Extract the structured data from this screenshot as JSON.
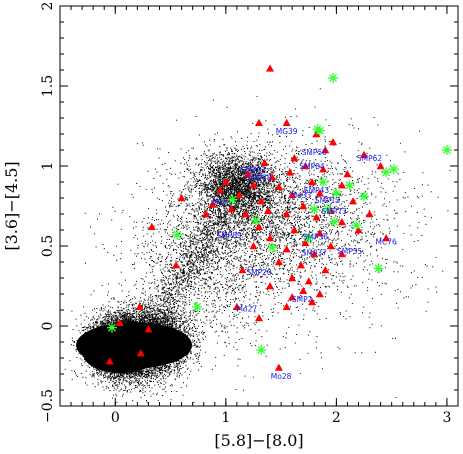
{
  "chart_data": {
    "type": "scatter",
    "xlabel": "[5.8]−[8.0]",
    "ylabel": "[3.6]−[4.5]",
    "xlim": [
      -0.5,
      3.1
    ],
    "ylim": [
      -0.5,
      2.0
    ],
    "x_ticks": [
      0,
      1,
      2,
      3
    ],
    "x_tick_labels": [
      "0",
      "1",
      "2",
      "3"
    ],
    "y_ticks": [
      -0.5,
      0,
      0.5,
      1,
      1.5,
      2
    ],
    "y_tick_labels": [
      "−0.5",
      "0",
      "0.5",
      "1",
      "1.5",
      "2"
    ],
    "grid": false,
    "colors": {
      "background": "#000000",
      "triangles": "#ff0000",
      "asterisks": "#33ff33",
      "labels": "#1a1aff"
    },
    "series": [
      {
        "marker": "triangle",
        "color": "#ff0000",
        "points": [
          [
            1.4,
            1.61
          ],
          [
            1.3,
            1.27
          ],
          [
            1.55,
            1.27
          ],
          [
            1.82,
            1.2
          ],
          [
            1.97,
            1.15
          ],
          [
            1.9,
            1.1
          ],
          [
            2.25,
            1.07
          ],
          [
            1.62,
            1.05
          ],
          [
            1.35,
            1.02
          ],
          [
            1.72,
            1.0
          ],
          [
            1.88,
            0.98
          ],
          [
            2.1,
            0.95
          ],
          [
            1.2,
            0.95
          ],
          [
            1.42,
            0.93
          ],
          [
            1.58,
            0.96
          ],
          [
            1.0,
            0.9
          ],
          [
            1.25,
            0.88
          ],
          [
            1.48,
            0.87
          ],
          [
            1.78,
            0.9
          ],
          [
            2.05,
            0.88
          ],
          [
            2.4,
            1.0
          ],
          [
            0.95,
            0.85
          ],
          [
            1.12,
            0.82
          ],
          [
            1.32,
            0.78
          ],
          [
            1.6,
            0.82
          ],
          [
            1.85,
            0.83
          ],
          [
            2.15,
            0.78
          ],
          [
            0.88,
            0.76
          ],
          [
            1.05,
            0.73
          ],
          [
            1.38,
            0.72
          ],
          [
            1.7,
            0.75
          ],
          [
            1.95,
            0.72
          ],
          [
            2.3,
            0.7
          ],
          [
            0.6,
            0.8
          ],
          [
            0.82,
            0.7
          ],
          [
            1.18,
            0.7
          ],
          [
            1.55,
            0.7
          ],
          [
            1.82,
            0.68
          ],
          [
            2.05,
            0.65
          ],
          [
            1.3,
            0.62
          ],
          [
            1.62,
            0.6
          ],
          [
            1.85,
            0.58
          ],
          [
            2.2,
            0.6
          ],
          [
            2.45,
            0.55
          ],
          [
            1.4,
            0.55
          ],
          [
            1.72,
            0.52
          ],
          [
            1.95,
            0.5
          ],
          [
            0.33,
            0.62
          ],
          [
            1.25,
            0.5
          ],
          [
            1.55,
            0.48
          ],
          [
            1.8,
            0.45
          ],
          [
            2.05,
            0.45
          ],
          [
            0.55,
            0.38
          ],
          [
            1.15,
            0.35
          ],
          [
            1.48,
            0.4
          ],
          [
            1.68,
            0.38
          ],
          [
            1.9,
            0.35
          ],
          [
            1.6,
            0.3
          ],
          [
            1.75,
            0.28
          ],
          [
            1.4,
            0.25
          ],
          [
            1.7,
            0.22
          ],
          [
            1.85,
            0.2
          ],
          [
            1.6,
            0.18
          ],
          [
            1.78,
            0.15
          ],
          [
            1.1,
            0.12
          ],
          [
            1.55,
            0.12
          ],
          [
            1.3,
            0.05
          ],
          [
            0.22,
            0.12
          ],
          [
            0.04,
            0.02
          ],
          [
            0.3,
            -0.02
          ],
          [
            -0.05,
            -0.22
          ],
          [
            0.23,
            -0.17
          ],
          [
            1.48,
            -0.26
          ]
        ]
      },
      {
        "marker": "asterisk",
        "color": "#33ff33",
        "points": [
          [
            1.97,
            1.55
          ],
          [
            3.0,
            1.1
          ],
          [
            1.83,
            1.23
          ],
          [
            1.85,
            1.22
          ],
          [
            2.45,
            0.96
          ],
          [
            2.52,
            0.98
          ],
          [
            1.88,
            0.9
          ],
          [
            2.12,
            0.88
          ],
          [
            2.0,
            0.83
          ],
          [
            2.25,
            0.81
          ],
          [
            1.06,
            0.79
          ],
          [
            1.8,
            0.73
          ],
          [
            1.92,
            0.73
          ],
          [
            1.27,
            0.66
          ],
          [
            2.18,
            0.63
          ],
          [
            1.98,
            0.65
          ],
          [
            0.56,
            0.57
          ],
          [
            1.75,
            0.55
          ],
          [
            1.42,
            0.49
          ],
          [
            2.38,
            0.36
          ],
          [
            0.74,
            0.12
          ],
          [
            1.32,
            -0.15
          ],
          [
            -0.03,
            -0.01
          ]
        ]
      }
    ],
    "annotations": [
      {
        "text": "MG39",
        "x": 1.55,
        "y": 1.2
      },
      {
        "text": "SMP58",
        "x": 1.8,
        "y": 1.07
      },
      {
        "text": "SMP62",
        "x": 2.3,
        "y": 1.03
      },
      {
        "text": "SMP84",
        "x": 1.78,
        "y": 0.98
      },
      {
        "text": "SMP93",
        "x": 1.25,
        "y": 0.96
      },
      {
        "text": "SMP38",
        "x": 1.3,
        "y": 0.91
      },
      {
        "text": "SMP43",
        "x": 1.82,
        "y": 0.83
      },
      {
        "text": "Mo33",
        "x": 1.68,
        "y": 0.8
      },
      {
        "text": "SMP13",
        "x": 1.92,
        "y": 0.77
      },
      {
        "text": "M27",
        "x": 0.95,
        "y": 0.76
      },
      {
        "text": "SMP73",
        "x": 1.98,
        "y": 0.7
      },
      {
        "text": "SMP89",
        "x": 1.03,
        "y": 0.55
      },
      {
        "text": "SMP36",
        "x": 1.81,
        "y": 0.54
      },
      {
        "text": "MC76",
        "x": 2.45,
        "y": 0.51
      },
      {
        "text": "SMP37",
        "x": 1.8,
        "y": 0.44
      },
      {
        "text": "SMP35",
        "x": 2.12,
        "y": 0.45
      },
      {
        "text": "SMP20",
        "x": 1.3,
        "y": 0.32
      },
      {
        "text": "SMP2",
        "x": 1.69,
        "y": 0.15
      },
      {
        "text": "Mo27",
        "x": 1.19,
        "y": 0.09
      },
      {
        "text": "Mo28",
        "x": 1.5,
        "y": -0.33
      }
    ]
  }
}
